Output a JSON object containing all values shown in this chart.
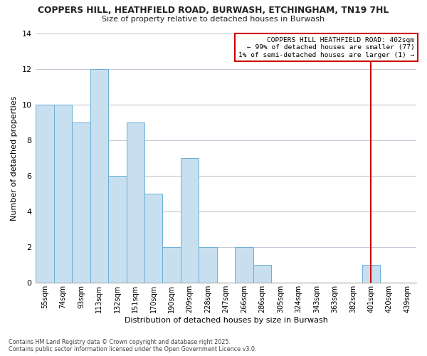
{
  "title": "COPPERS HILL, HEATHFIELD ROAD, BURWASH, ETCHINGHAM, TN19 7HL",
  "subtitle": "Size of property relative to detached houses in Burwash",
  "xlabel": "Distribution of detached houses by size in Burwash",
  "ylabel": "Number of detached properties",
  "categories": [
    "55sqm",
    "74sqm",
    "93sqm",
    "113sqm",
    "132sqm",
    "151sqm",
    "170sqm",
    "190sqm",
    "209sqm",
    "228sqm",
    "247sqm",
    "266sqm",
    "286sqm",
    "305sqm",
    "324sqm",
    "343sqm",
    "363sqm",
    "382sqm",
    "401sqm",
    "420sqm",
    "439sqm"
  ],
  "values": [
    10,
    10,
    9,
    12,
    6,
    9,
    5,
    2,
    7,
    2,
    0,
    2,
    1,
    0,
    0,
    0,
    0,
    0,
    1,
    0,
    0
  ],
  "bar_color": "#c8dff0",
  "bar_edge_color": "#6aafd6",
  "grid_color": "#c8c8d8",
  "background_color": "#ffffff",
  "vline_x_index": 18,
  "vline_color": "#cc0000",
  "annotation_text": "COPPERS HILL HEATHFIELD ROAD: 402sqm\n← 99% of detached houses are smaller (77)\n1% of semi-detached houses are larger (1) →",
  "annotation_box_color": "#ffffff",
  "annotation_box_edge": "#cc0000",
  "ylim": [
    0,
    14
  ],
  "yticks": [
    0,
    2,
    4,
    6,
    8,
    10,
    12,
    14
  ],
  "footnote": "Contains HM Land Registry data © Crown copyright and database right 2025.\nContains public sector information licensed under the Open Government Licence v3.0."
}
